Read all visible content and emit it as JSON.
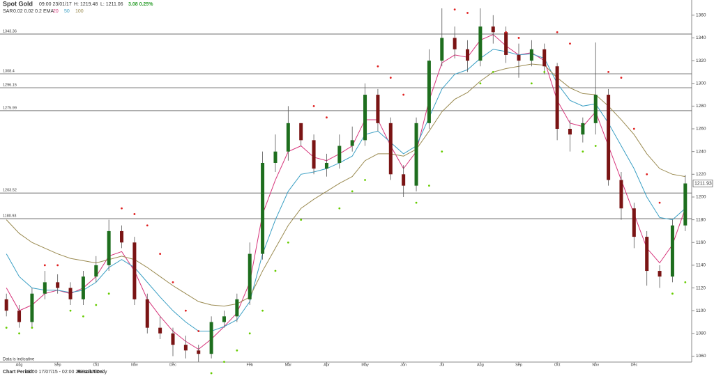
{
  "chart_data": {
    "type": "candlestick",
    "title": "Spot Gold",
    "timestamp": "09:00 23/01/17",
    "high_text": "H: 1219.48",
    "low_text": "L: 1211.06",
    "change_text": "3.08 0.25%",
    "sar_label": "SAR",
    "sar_params": "0.02 0.02 0.2",
    "ema_label": "EMA",
    "disclaimer": "Data is indicative",
    "period_label": "Chart Period:",
    "period": "03:00 17/07/15 - 02:00 26/01/17",
    "resolution_label": "Resolution:",
    "resolution": "Daily",
    "up_color": "#1e6e1e",
    "down_color": "#7a1414",
    "sar_up_color": "#66cc00",
    "sar_down_color": "#e02020",
    "categories": [
      null,
      "Aug",
      null,
      null,
      "Sep",
      null,
      null,
      "Oct",
      null,
      null,
      "Nov",
      null,
      null,
      "Dec",
      null,
      null,
      null,
      null,
      null,
      "Feb",
      null,
      null,
      "Mar",
      null,
      null,
      "Apr",
      null,
      null,
      "May",
      null,
      null,
      "Jun",
      null,
      null,
      "Jul",
      null,
      null,
      "Aug",
      null,
      null,
      "Sep",
      null,
      null,
      "Oct",
      null,
      null,
      "Nov",
      null,
      null,
      "Dec",
      null,
      null,
      null,
      null
    ],
    "open": [
      1110,
      1100,
      1090,
      1115,
      1125,
      1120,
      1110,
      1130,
      1140,
      1170,
      1160,
      1110,
      1085,
      1080,
      1070,
      1065,
      1062,
      1090,
      1095,
      1110,
      1150,
      1230,
      1240,
      1265,
      1250,
      1225,
      1230,
      1245,
      1250,
      1290,
      1265,
      1220,
      1210,
      1265,
      1320,
      1340,
      1330,
      1320,
      1350,
      1345,
      1325,
      1320,
      1330,
      1315,
      1260,
      1255,
      1265,
      1290,
      1215,
      1190,
      1165,
      1135,
      1130,
      1175
    ],
    "high": [
      1115,
      1105,
      1120,
      1135,
      1132,
      1125,
      1135,
      1148,
      1180,
      1175,
      1165,
      1115,
      1095,
      1085,
      1078,
      1070,
      1095,
      1100,
      1115,
      1160,
      1240,
      1255,
      1280,
      1265,
      1255,
      1238,
      1255,
      1262,
      1300,
      1295,
      1270,
      1228,
      1270,
      1330,
      1366,
      1350,
      1338,
      1366,
      1360,
      1350,
      1335,
      1338,
      1335,
      1318,
      1268,
      1270,
      1336,
      1295,
      1222,
      1195,
      1170,
      1140,
      1180,
      1219.48
    ],
    "low": [
      1095,
      1085,
      1085,
      1110,
      1115,
      1105,
      1105,
      1125,
      1135,
      1155,
      1105,
      1080,
      1075,
      1060,
      1058,
      1055,
      1058,
      1085,
      1090,
      1105,
      1145,
      1222,
      1232,
      1245,
      1220,
      1218,
      1225,
      1240,
      1245,
      1258,
      1215,
      1200,
      1205,
      1260,
      1315,
      1322,
      1310,
      1315,
      1335,
      1318,
      1305,
      1315,
      1308,
      1250,
      1240,
      1248,
      1255,
      1210,
      1180,
      1155,
      1122,
      1120,
      1125,
      1170
    ],
    "close": [
      1100,
      1090,
      1115,
      1125,
      1120,
      1110,
      1130,
      1140,
      1170,
      1160,
      1110,
      1085,
      1080,
      1070,
      1065,
      1062,
      1090,
      1095,
      1110,
      1150,
      1230,
      1240,
      1265,
      1250,
      1225,
      1230,
      1245,
      1250,
      1290,
      1265,
      1220,
      1210,
      1265,
      1320,
      1340,
      1330,
      1320,
      1350,
      1345,
      1325,
      1320,
      1330,
      1315,
      1260,
      1255,
      1265,
      1290,
      1215,
      1190,
      1165,
      1135,
      1130,
      1175,
      1211.93
    ],
    "sar": [
      1085,
      1080,
      1085,
      1140,
      1140,
      1100,
      1095,
      1105,
      1115,
      1190,
      1185,
      1175,
      1150,
      1125,
      1100,
      1082,
      1045,
      1055,
      1065,
      1080,
      1100,
      1135,
      1160,
      1180,
      1280,
      1270,
      1190,
      1205,
      1215,
      1315,
      1305,
      1290,
      1195,
      1210,
      1240,
      1365,
      1362,
      1300,
      1310,
      1345,
      1340,
      1300,
      1310,
      1345,
      1335,
      1240,
      1245,
      1310,
      1305,
      1260,
      1220,
      1195,
      1115,
      1125
    ],
    "series": [
      {
        "name": "20",
        "color": "#d6337a",
        "values": [
          1120,
          1100,
          1105,
          1115,
          1118,
          1115,
          1120,
          1130,
          1148,
          1152,
          1135,
          1110,
          1095,
          1082,
          1073,
          1066,
          1075,
          1086,
          1098,
          1125,
          1185,
          1215,
          1240,
          1245,
          1235,
          1232,
          1238,
          1245,
          1268,
          1268,
          1245,
          1225,
          1240,
          1285,
          1318,
          1325,
          1323,
          1338,
          1343,
          1333,
          1325,
          1327,
          1320,
          1285,
          1265,
          1262,
          1275,
          1245,
          1215,
          1185,
          1155,
          1142,
          1158,
          1190
        ]
      },
      {
        "name": "50",
        "color": "#3a9fc4",
        "values": [
          1150,
          1130,
          1120,
          1118,
          1118,
          1116,
          1118,
          1125,
          1138,
          1145,
          1138,
          1125,
          1112,
          1100,
          1090,
          1082,
          1082,
          1086,
          1092,
          1108,
          1150,
          1180,
          1205,
          1220,
          1222,
          1225,
          1230,
          1236,
          1255,
          1258,
          1248,
          1238,
          1245,
          1270,
          1295,
          1308,
          1312,
          1322,
          1330,
          1328,
          1325,
          1326,
          1322,
          1300,
          1285,
          1280,
          1282,
          1265,
          1245,
          1225,
          1200,
          1182,
          1180,
          1190
        ]
      },
      {
        "name": "100",
        "color": "#9a8a50",
        "values": [
          1180,
          1168,
          1160,
          1155,
          1150,
          1146,
          1144,
          1142,
          1145,
          1148,
          1145,
          1138,
          1130,
          1122,
          1115,
          1108,
          1105,
          1104,
          1106,
          1112,
          1135,
          1155,
          1175,
          1190,
          1198,
          1205,
          1212,
          1218,
          1232,
          1238,
          1238,
          1236,
          1242,
          1258,
          1275,
          1286,
          1292,
          1302,
          1310,
          1313,
          1315,
          1317,
          1316,
          1305,
          1296,
          1291,
          1290,
          1280,
          1268,
          1255,
          1238,
          1225,
          1220,
          1218
        ]
      }
    ],
    "levels": [
      1343.36,
      1308.4,
      1296.15,
      1275.99,
      1203.52,
      1180.93
    ],
    "ylim": [
      1056,
      1366
    ],
    "yticks": [
      1060,
      1080,
      1100,
      1120,
      1140,
      1160,
      1180,
      1200,
      1220,
      1240,
      1260,
      1280,
      1300,
      1320,
      1340,
      1360
    ]
  }
}
